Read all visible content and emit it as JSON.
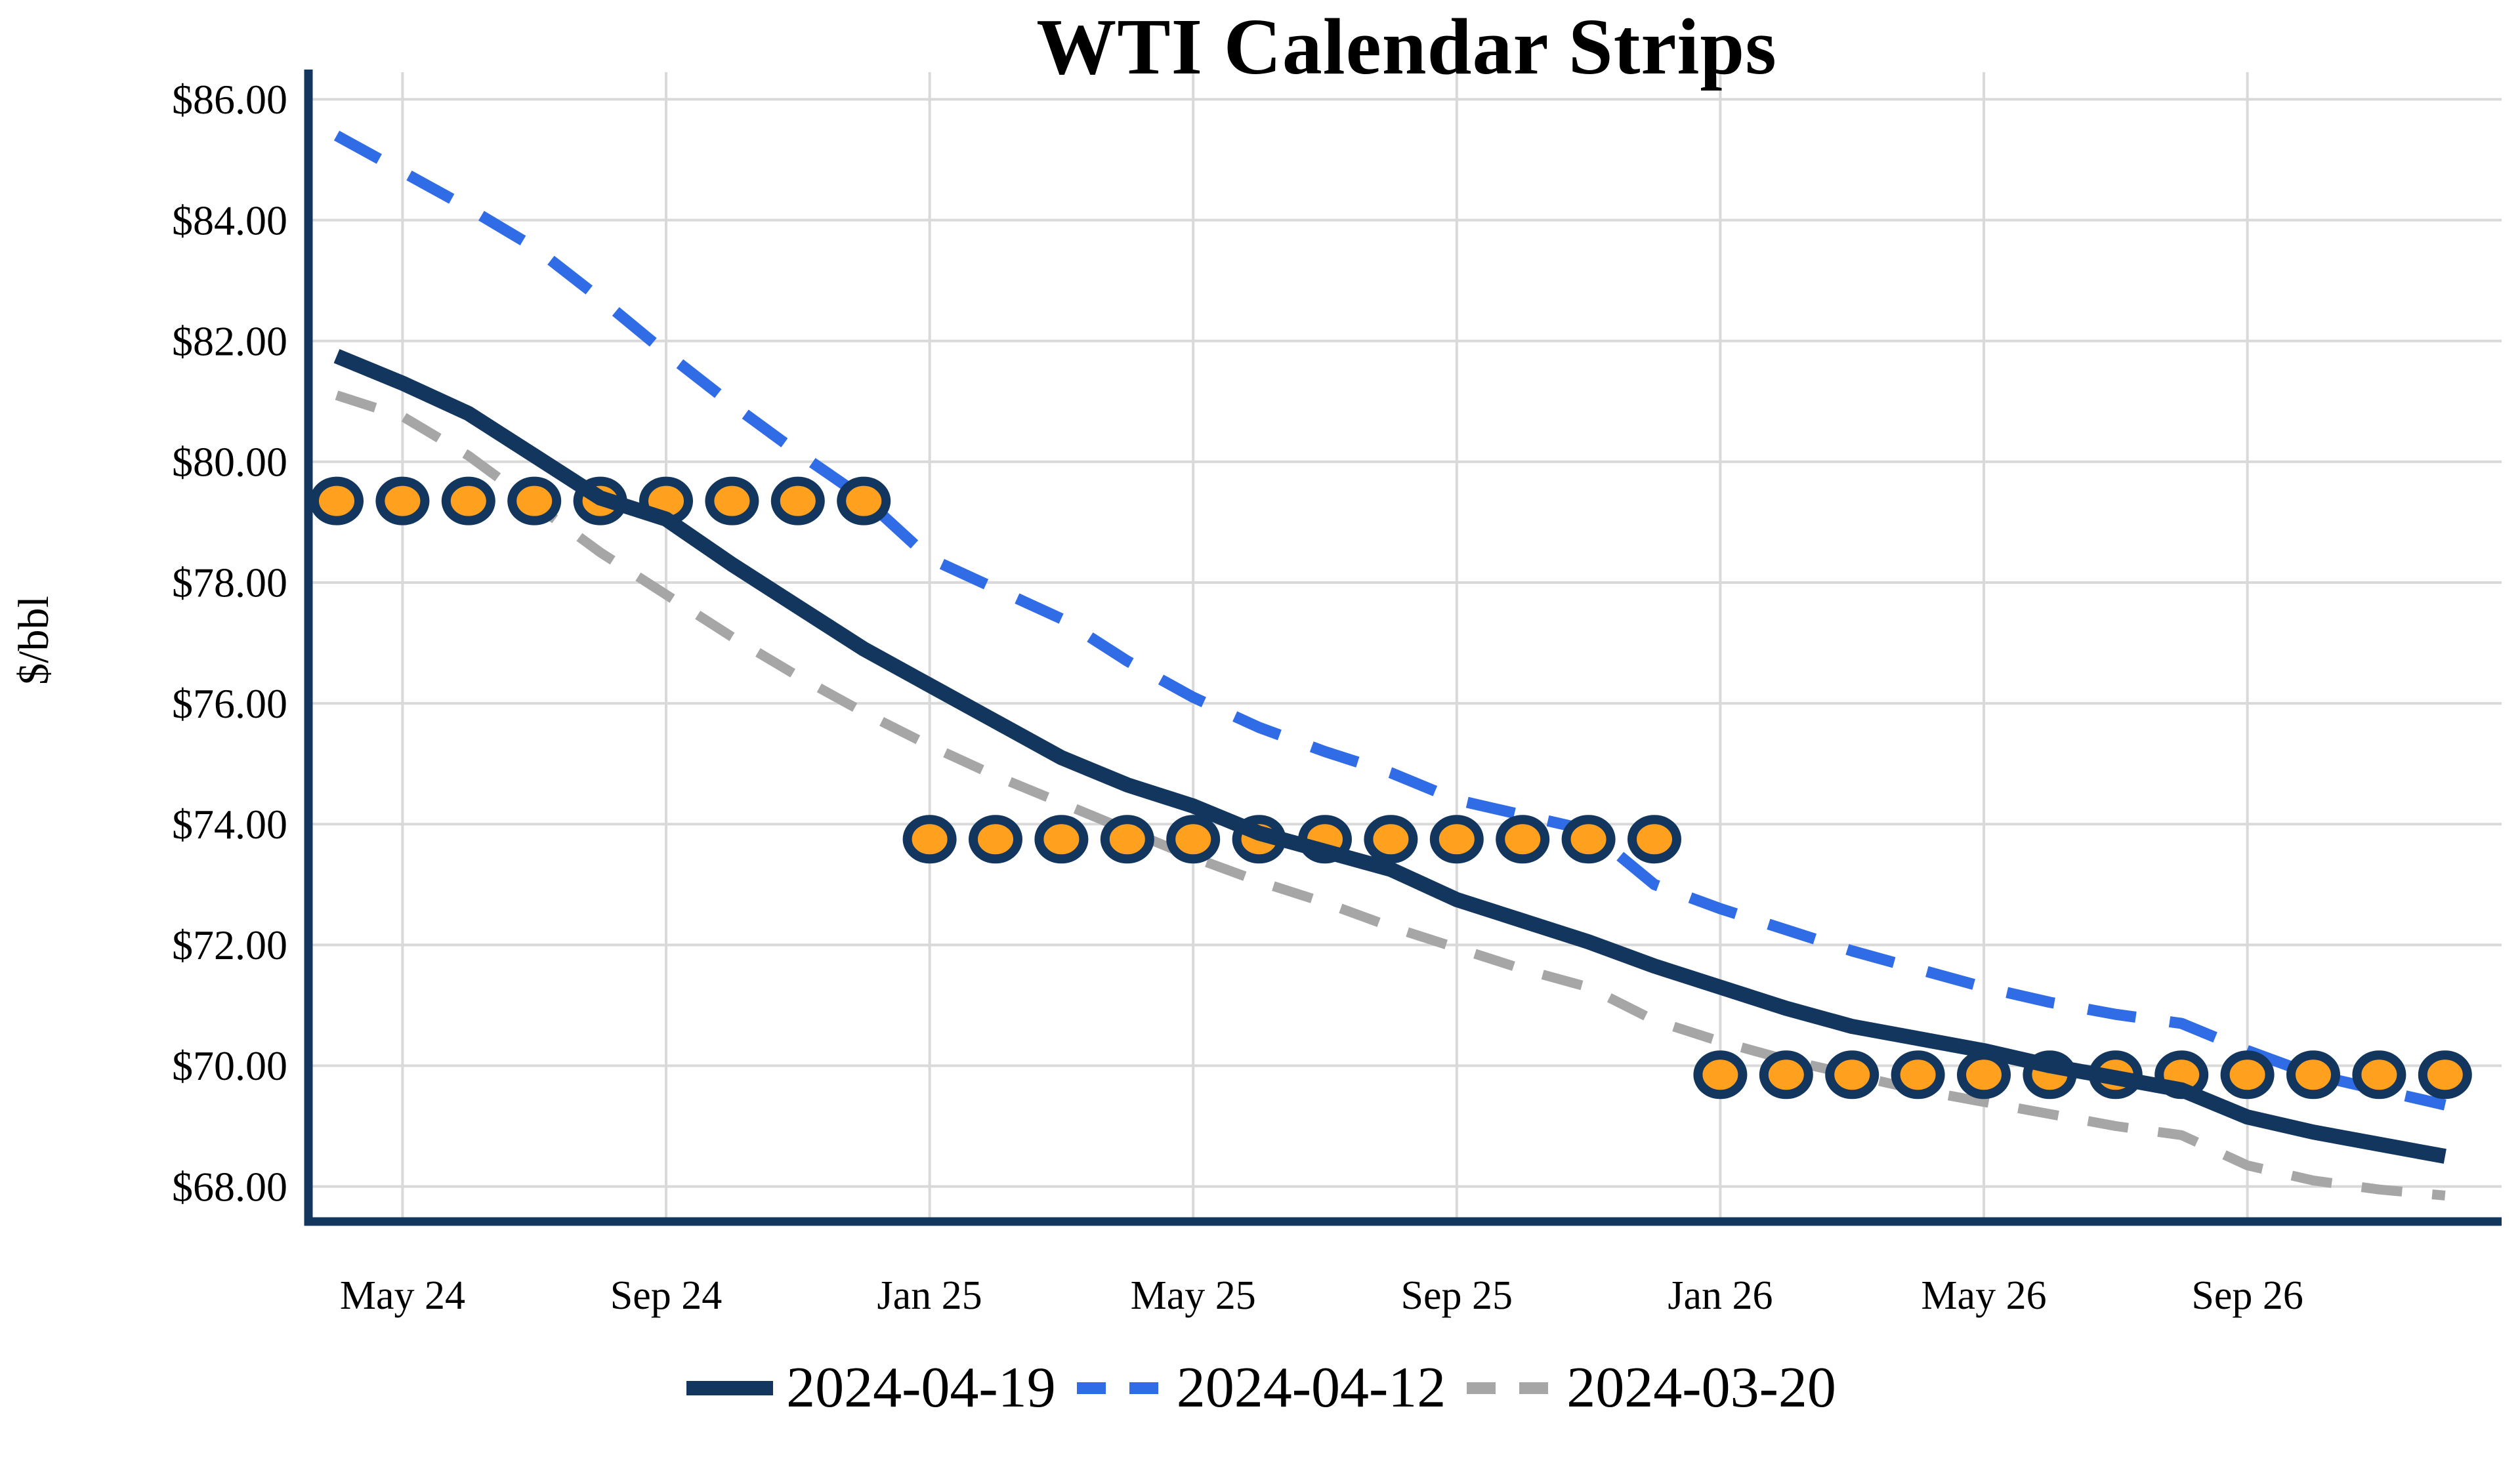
{
  "title": "WTI Calendar Strips",
  "y_axis_title": "$/bbl",
  "colors": {
    "navy": "#13365E",
    "blue": "#2F6CE5",
    "gray": "#A6A6A6",
    "marker_fill": "#FFA01E",
    "marker_stroke": "#13365E",
    "gridline": "#D9D9D9",
    "axis": "#13365E",
    "text": "#000000"
  },
  "chart_data": {
    "type": "line",
    "title": "WTI Calendar Strips",
    "xlabel": "",
    "ylabel": "$/bbl",
    "grid": true,
    "legend_position": "bottom",
    "ylim": [
      67.42,
      86.45
    ],
    "x": [
      "Apr 24",
      "May 24",
      "Jun 24",
      "Jul 24",
      "Aug 24",
      "Sep 24",
      "Oct 24",
      "Nov 24",
      "Dec 24",
      "Jan 25",
      "Feb 25",
      "Mar 25",
      "Apr 25",
      "May 25",
      "Jun 25",
      "Jul 25",
      "Aug 25",
      "Sep 25",
      "Oct 25",
      "Nov 25",
      "Dec 25",
      "Jan 26",
      "Feb 26",
      "Mar 26",
      "Apr 26",
      "May 26",
      "Jun 26",
      "Jul 26",
      "Aug 26",
      "Sep 26",
      "Oct 26",
      "Nov 26",
      "Dec 26"
    ],
    "x_ticks": [
      {
        "index": 1,
        "label": "May 24"
      },
      {
        "index": 5,
        "label": "Sep 24"
      },
      {
        "index": 9,
        "label": "Jan 25"
      },
      {
        "index": 13,
        "label": "May 25"
      },
      {
        "index": 17,
        "label": "Sep 25"
      },
      {
        "index": 21,
        "label": "Jan 26"
      },
      {
        "index": 25,
        "label": "May 26"
      },
      {
        "index": 29,
        "label": "Sep 26"
      }
    ],
    "y_ticks": [
      {
        "value": 68,
        "label": "$68.00"
      },
      {
        "value": 70,
        "label": "$70.00"
      },
      {
        "value": 72,
        "label": "$72.00"
      },
      {
        "value": 74,
        "label": "$74.00"
      },
      {
        "value": 76,
        "label": "$76.00"
      },
      {
        "value": 78,
        "label": "$78.00"
      },
      {
        "value": 80,
        "label": "$80.00"
      },
      {
        "value": 82,
        "label": "$82.00"
      },
      {
        "value": 84,
        "label": "$84.00"
      },
      {
        "value": 86,
        "label": "$86.00"
      }
    ],
    "series": [
      {
        "name": "2024-04-19",
        "style": "solid",
        "color_key": "navy",
        "values": [
          81.75,
          81.3,
          80.8,
          80.1,
          79.4,
          79.05,
          78.3,
          77.6,
          76.9,
          76.3,
          75.7,
          75.1,
          74.65,
          74.3,
          73.85,
          73.55,
          73.25,
          72.75,
          72.4,
          72.05,
          71.65,
          71.3,
          70.95,
          70.65,
          70.45,
          70.25,
          70.0,
          69.8,
          69.6,
          69.15,
          68.9,
          68.7,
          68.5
        ]
      },
      {
        "name": "2024-04-12",
        "style": "dashed",
        "color_key": "blue",
        "values": [
          85.4,
          84.8,
          84.2,
          83.55,
          82.7,
          81.8,
          80.95,
          80.15,
          79.4,
          78.4,
          77.9,
          77.4,
          76.7,
          76.1,
          75.6,
          75.2,
          74.85,
          74.4,
          74.15,
          73.9,
          73.0,
          72.6,
          72.25,
          71.9,
          71.6,
          71.3,
          71.05,
          70.85,
          70.7,
          70.25,
          69.85,
          69.6,
          69.35
        ]
      },
      {
        "name": "2024-03-20",
        "style": "dashed",
        "color_key": "gray",
        "values": [
          81.1,
          80.75,
          80.1,
          79.3,
          78.5,
          77.8,
          77.1,
          76.45,
          75.85,
          75.3,
          74.8,
          74.35,
          73.9,
          73.45,
          73.05,
          72.7,
          72.3,
          71.95,
          71.6,
          71.3,
          70.75,
          70.4,
          70.1,
          69.85,
          69.6,
          69.4,
          69.2,
          69.0,
          68.85,
          68.35,
          68.1,
          67.95,
          67.85
        ]
      }
    ],
    "markers": {
      "name": "calendar-strip-dots",
      "type": "scatter",
      "fill_key": "marker_fill",
      "stroke_key": "marker_stroke",
      "values": [
        79.35,
        79.35,
        79.35,
        79.35,
        79.35,
        79.35,
        79.35,
        79.35,
        79.35,
        73.75,
        73.75,
        73.75,
        73.75,
        73.75,
        73.75,
        73.75,
        73.75,
        73.75,
        73.75,
        73.75,
        73.75,
        69.85,
        69.85,
        69.85,
        69.85,
        69.85,
        69.85,
        69.85,
        69.85,
        69.85,
        69.85,
        69.85,
        69.85
      ]
    },
    "legend": [
      "2024-04-19",
      "2024-04-12",
      "2024-03-20"
    ]
  }
}
